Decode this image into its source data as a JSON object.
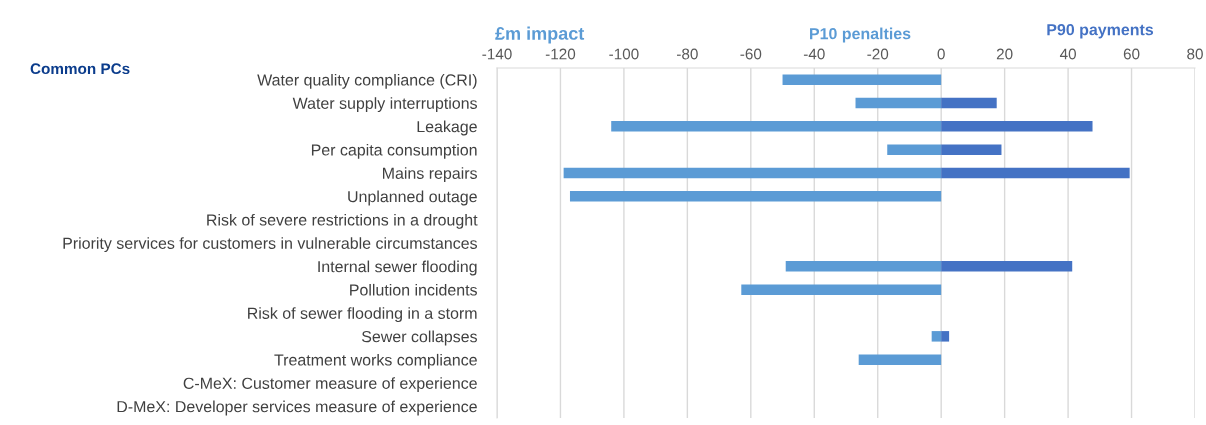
{
  "chart_data": {
    "type": "bar",
    "orientation": "horizontal",
    "stacked": true,
    "title": "Common PCs",
    "xlabel": "£m impact",
    "categories": [
      "Water quality compliance (CRI)",
      "Water supply interruptions",
      "Leakage",
      "Per capita consumption",
      "Mains repairs",
      "Unplanned outage",
      "Risk of severe restrictions in a drought",
      "Priority services for customers in vulnerable circumstances",
      "Internal sewer flooding",
      "Pollution incidents",
      "Risk of sewer flooding in a storm",
      "Sewer collapses",
      "Treatment works compliance",
      "C-MeX: Customer measure of experience",
      "D-MeX: Developer services measure of experience"
    ],
    "series": [
      {
        "name": "P10 penalties",
        "color": "#5b9bd5",
        "values": [
          -50,
          -27,
          -104,
          -17,
          -119,
          -117,
          null,
          null,
          -49,
          -63,
          null,
          -3,
          -26,
          null,
          null
        ]
      },
      {
        "name": "P90 payments",
        "color": "#4472c4",
        "values": [
          null,
          17.5,
          47.7,
          19,
          59.4,
          null,
          null,
          null,
          41.3,
          null,
          null,
          2.5,
          null,
          null,
          null
        ]
      }
    ],
    "xlim": [
      -140,
      80
    ],
    "xticks": [
      -140,
      -120,
      -100,
      -80,
      -60,
      -40,
      -20,
      0,
      20,
      40,
      60,
      80
    ],
    "grid": "x",
    "legend": false
  }
}
